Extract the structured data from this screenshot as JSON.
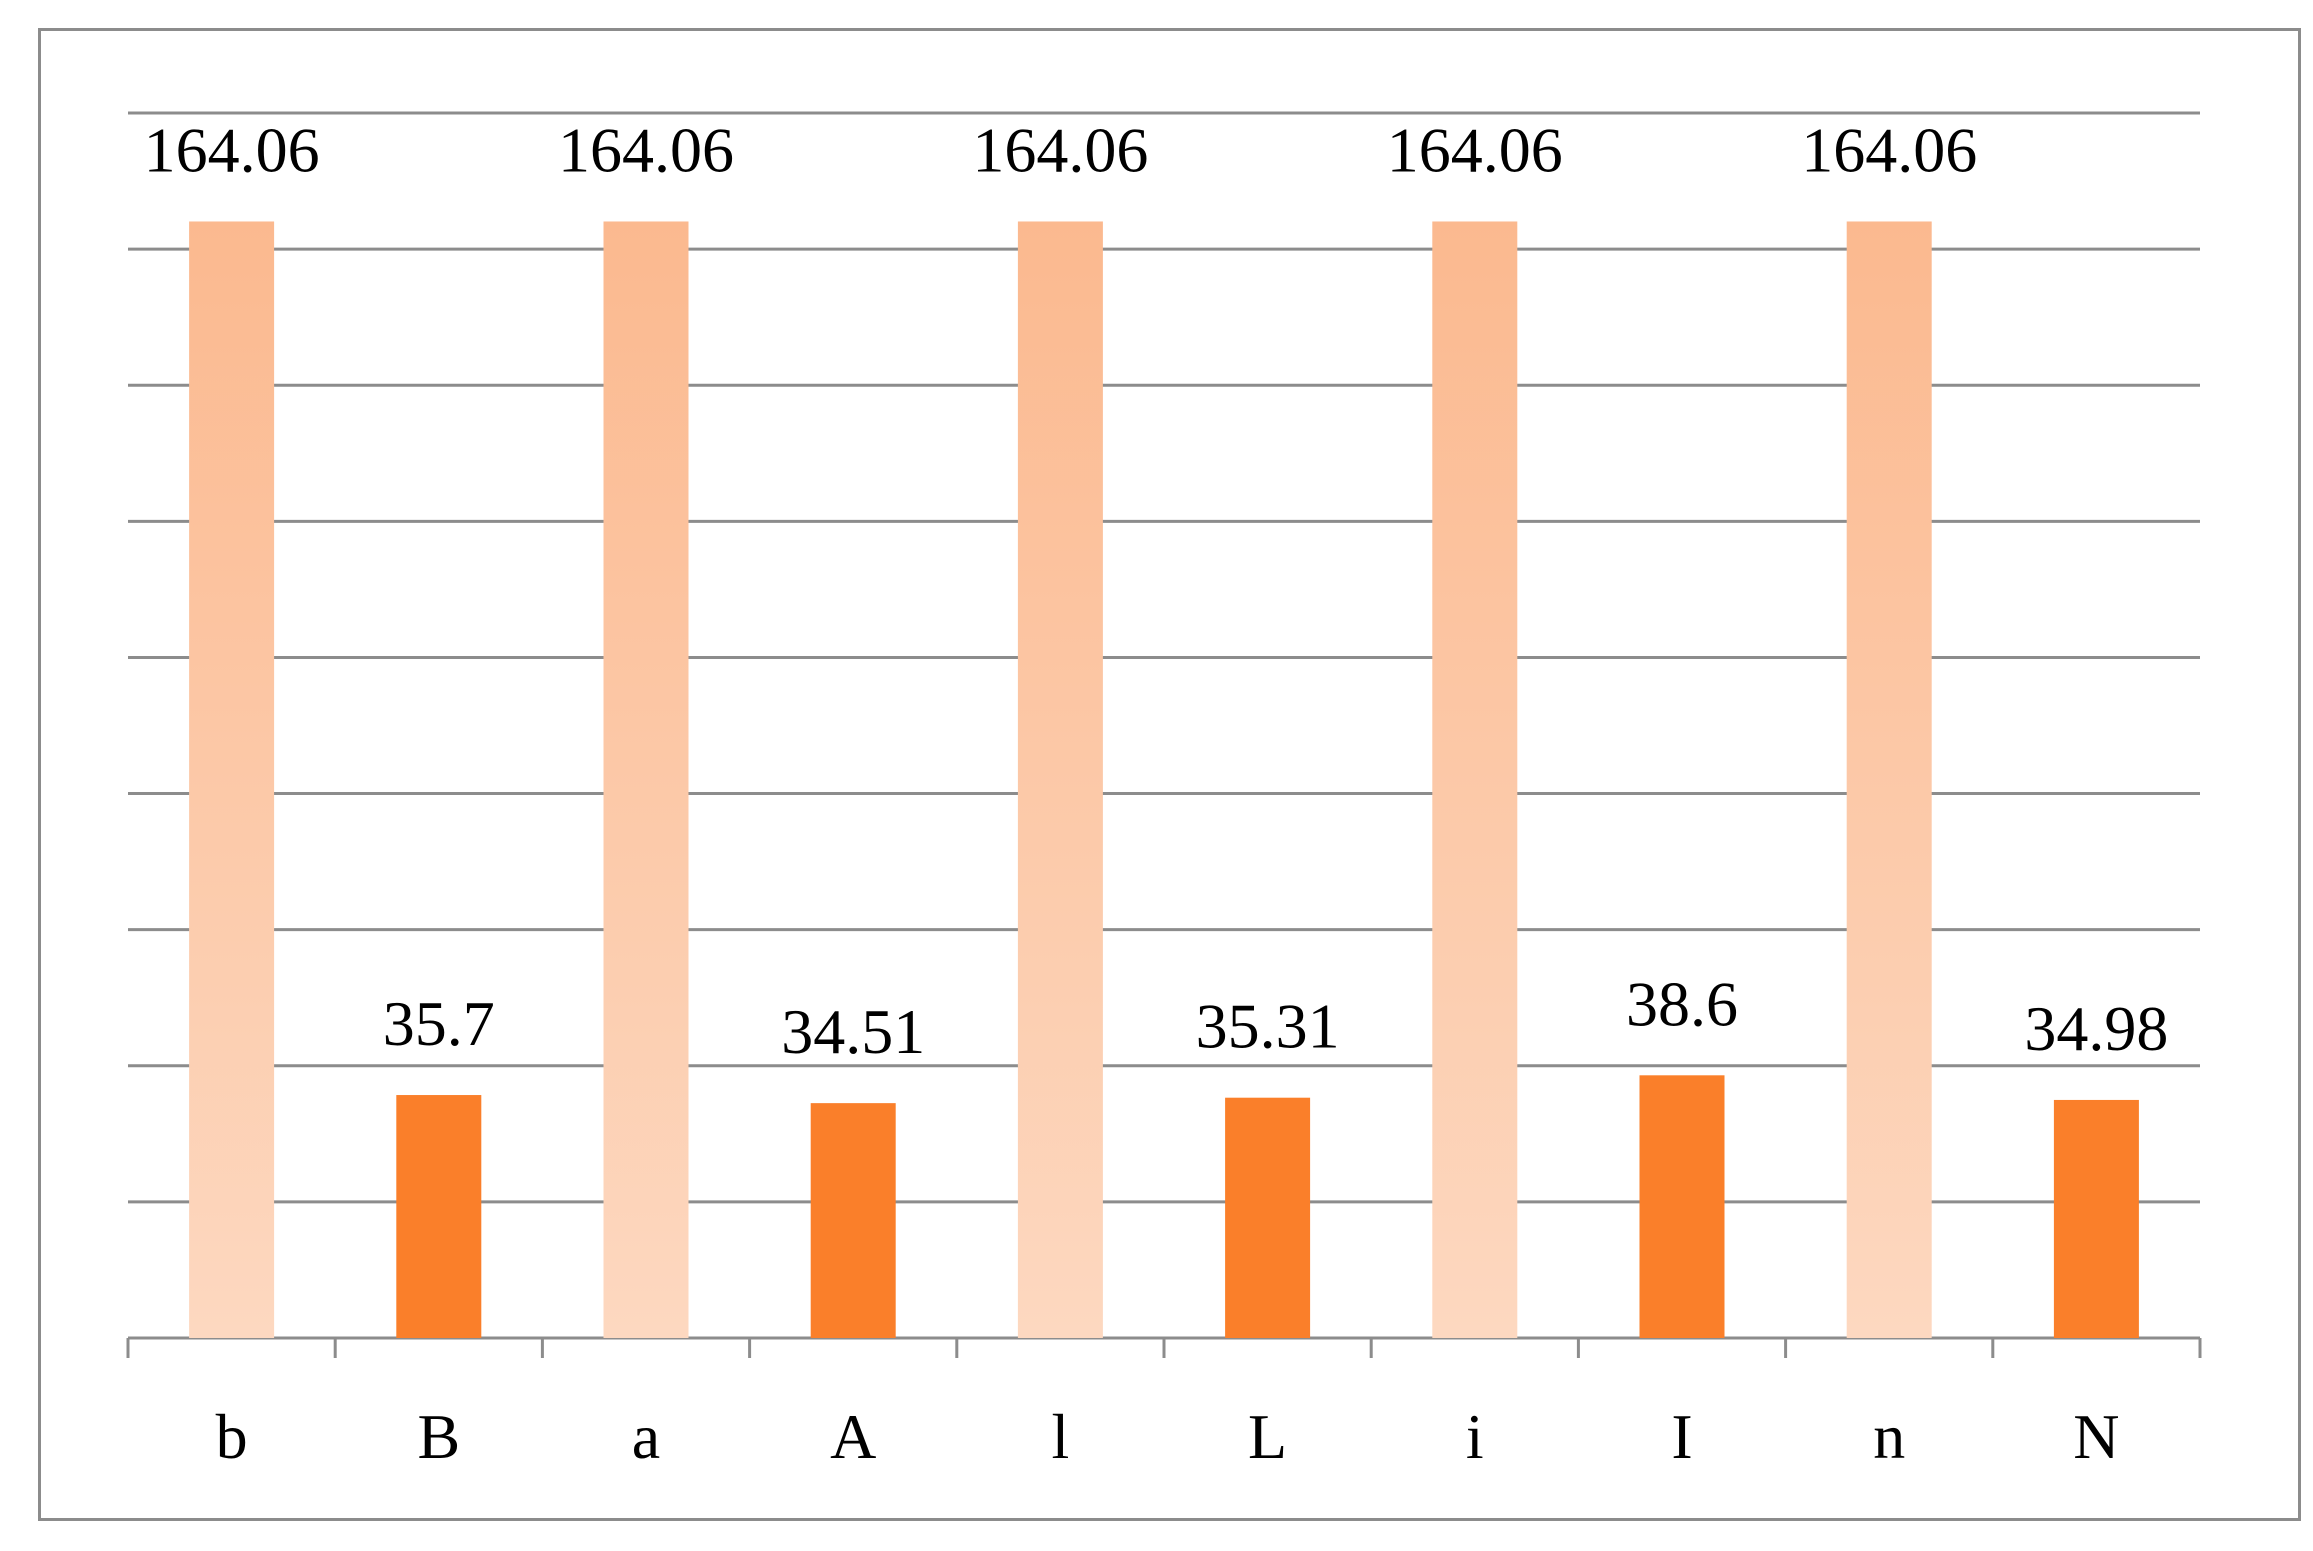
{
  "chart_data": {
    "type": "bar",
    "categories": [
      "b",
      "B",
      "a",
      "A",
      "l",
      "L",
      "i",
      "I",
      "n",
      "N"
    ],
    "values": [
      164.06,
      35.7,
      164.06,
      34.51,
      164.06,
      35.31,
      164.06,
      38.6,
      164.06,
      34.98
    ],
    "data_labels": [
      "164.06",
      "35.7",
      "164.06",
      "34.51",
      "164.06",
      "35.31",
      "164.06",
      "38.6",
      "164.06",
      "34.98"
    ],
    "title": "",
    "xlabel": "",
    "ylabel": "",
    "ylim": [
      0,
      180
    ],
    "ytick_step": 20,
    "y_tick_labels_shown": false,
    "grid": true,
    "legend": "none",
    "colors": {
      "light_bar_top": "#fbb98f",
      "light_bar_bottom": "#fdd8c0",
      "dark_bar": "#fa7f2a",
      "grid": "#8c8c8c",
      "frame": "#8c8c8c"
    }
  }
}
